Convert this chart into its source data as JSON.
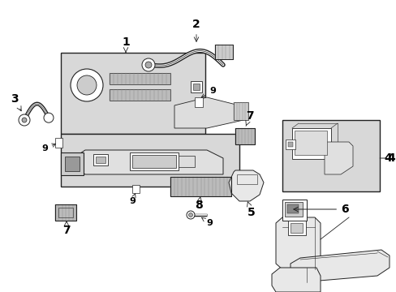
{
  "bg_color": "#ffffff",
  "line_color": "#222222",
  "shade_color": "#d8d8d8",
  "fig_width": 4.89,
  "fig_height": 3.6,
  "dpi": 100
}
